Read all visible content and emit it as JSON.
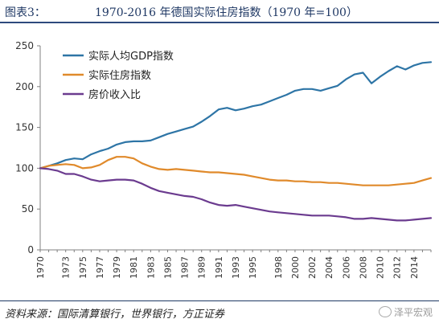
{
  "header": {
    "label": "图表3：",
    "title": "1970-2016 年德国实际住房指数（1970 年=100）"
  },
  "footer": {
    "source": "资料来源：国际清算银行，世界银行，方正证券",
    "watermark": "泽平宏观"
  },
  "chart_data": {
    "type": "line",
    "ylim": [
      0,
      250
    ],
    "yticks": [
      0,
      50,
      100,
      150,
      200,
      250
    ],
    "xlim": [
      1970,
      2016
    ],
    "xticks": [
      "1970",
      "1973",
      "1975",
      "1977",
      "1979",
      "1981",
      "1983",
      "1985",
      "1987",
      "1989",
      "1991",
      "1993",
      "1995",
      "1998",
      "2000",
      "2002",
      "2004",
      "2006",
      "2008",
      "2010",
      "2012",
      "2014"
    ],
    "grid": false,
    "legend": "top-left",
    "series": [
      {
        "name": "实际人均GDP指数",
        "color": "#2e75a6",
        "x": [
          1970,
          1971,
          1972,
          1973,
          1974,
          1975,
          1976,
          1977,
          1978,
          1979,
          1980,
          1981,
          1982,
          1983,
          1984,
          1985,
          1986,
          1987,
          1988,
          1989,
          1990,
          1991,
          1992,
          1993,
          1994,
          1995,
          1996,
          1997,
          1998,
          1999,
          2000,
          2001,
          2002,
          2003,
          2004,
          2005,
          2006,
          2007,
          2008,
          2009,
          2010,
          2011,
          2012,
          2013,
          2014,
          2015,
          2016
        ],
        "values": [
          100,
          103,
          106,
          110,
          112,
          111,
          117,
          121,
          124,
          129,
          132,
          133,
          133,
          134,
          138,
          142,
          145,
          148,
          151,
          157,
          164,
          172,
          174,
          171,
          173,
          176,
          178,
          182,
          186,
          190,
          195,
          197,
          197,
          195,
          198,
          201,
          209,
          215,
          217,
          204,
          212,
          219,
          225,
          221,
          226,
          229,
          230
        ]
      },
      {
        "name": "实际住房指数",
        "color": "#e08a2b",
        "x": [
          1970,
          1971,
          1972,
          1973,
          1974,
          1975,
          1976,
          1977,
          1978,
          1979,
          1980,
          1981,
          1982,
          1983,
          1984,
          1985,
          1986,
          1987,
          1988,
          1989,
          1990,
          1991,
          1992,
          1993,
          1994,
          1995,
          1996,
          1997,
          1998,
          1999,
          2000,
          2001,
          2002,
          2003,
          2004,
          2005,
          2006,
          2007,
          2008,
          2009,
          2010,
          2011,
          2012,
          2013,
          2014,
          2015,
          2016
        ],
        "values": [
          100,
          103,
          104,
          105,
          104,
          100,
          101,
          104,
          110,
          114,
          114,
          112,
          106,
          102,
          99,
          98,
          99,
          98,
          97,
          96,
          95,
          95,
          94,
          93,
          92,
          90,
          88,
          86,
          85,
          85,
          84,
          84,
          83,
          83,
          82,
          82,
          81,
          80,
          79,
          79,
          79,
          79,
          80,
          81,
          82,
          85,
          88
        ]
      },
      {
        "name": "房价收入比",
        "color": "#6b3b8f",
        "x": [
          1970,
          1971,
          1972,
          1973,
          1974,
          1975,
          1976,
          1977,
          1978,
          1979,
          1980,
          1981,
          1982,
          1983,
          1984,
          1985,
          1986,
          1987,
          1988,
          1989,
          1990,
          1991,
          1992,
          1993,
          1994,
          1995,
          1996,
          1997,
          1998,
          1999,
          2000,
          2001,
          2002,
          2003,
          2004,
          2005,
          2006,
          2007,
          2008,
          2009,
          2010,
          2011,
          2012,
          2013,
          2014,
          2015,
          2016
        ],
        "values": [
          100,
          99,
          97,
          93,
          93,
          90,
          86,
          84,
          85,
          86,
          86,
          85,
          81,
          76,
          72,
          70,
          68,
          66,
          65,
          62,
          58,
          55,
          54,
          55,
          53,
          51,
          49,
          47,
          46,
          45,
          44,
          43,
          42,
          42,
          42,
          41,
          40,
          38,
          38,
          39,
          38,
          37,
          36,
          36,
          37,
          38,
          39
        ]
      }
    ]
  }
}
